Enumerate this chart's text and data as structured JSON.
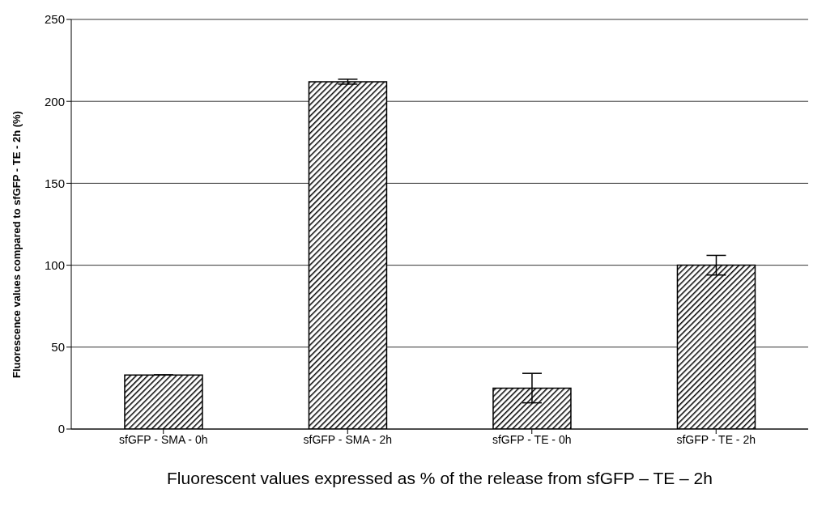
{
  "chart_data": {
    "type": "bar",
    "xlabel": "Fluorescent values expressed as % of the release from sfGFP – TE – 2h",
    "ylabel": "Fluorescence values compared to sfGFP - TE - 2h (%)",
    "categories": [
      "sfGFP - SMA - 0h",
      "sfGFP - SMA - 2h",
      "sfGFP - TE - 0h",
      "sfGFP - TE - 2h"
    ],
    "values": [
      33,
      212,
      25,
      100
    ],
    "errors": [
      null,
      1.5,
      9,
      6
    ],
    "color": "#000000",
    "ylim": [
      0,
      250
    ],
    "yticks": [
      0,
      50,
      100,
      150,
      200,
      250
    ],
    "grid": "y"
  }
}
